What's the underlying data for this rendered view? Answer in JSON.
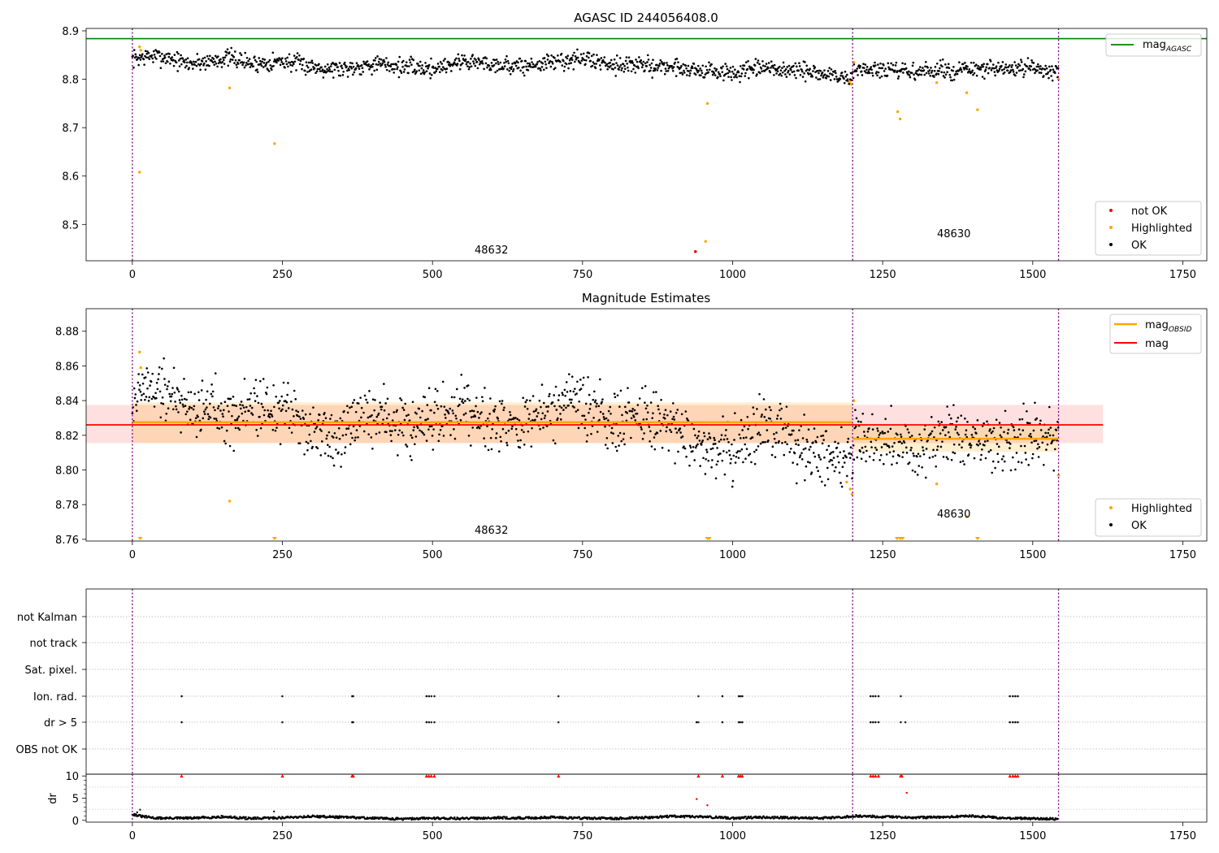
{
  "chart_data": [
    {
      "type": "scatter",
      "title": "AGASC ID 244056408.0",
      "xlabel": "",
      "ylabel": "",
      "xlim": [
        -77,
        1790
      ],
      "ylim": [
        8.425,
        8.905
      ],
      "xticks": [
        0,
        250,
        500,
        750,
        1000,
        1250,
        1500,
        1750
      ],
      "xtick_labels": [
        "0",
        "250",
        "500",
        "750",
        "1000",
        "1250",
        "1500",
        "1750"
      ],
      "yticks": [
        8.5,
        8.6,
        8.7,
        8.8,
        8.9
      ],
      "ytick_labels": [
        "8.5",
        "8.6",
        "8.7",
        "8.8",
        "8.9"
      ],
      "grid": false,
      "obsid_boundaries": [
        0,
        1200,
        1543
      ],
      "obsid_labels": [
        {
          "text": "48632",
          "x": 600,
          "y": 8.445
        },
        {
          "text": "48630",
          "x": 1370,
          "y": 8.477
        }
      ],
      "mag_agasc": 8.884,
      "legend_upper": {
        "position": "upper right",
        "entries": [
          {
            "label": "mag",
            "subscript": "AGASC",
            "color": "#008000"
          }
        ]
      },
      "legend_lower": {
        "position": "lower right",
        "entries": [
          {
            "label": "not OK",
            "color": "#ff0000"
          },
          {
            "label": "Highlighted",
            "color": "#ffa500"
          },
          {
            "label": "OK",
            "color": "#000000"
          }
        ]
      },
      "ok_trend": [
        [
          0,
          8.842
        ],
        [
          30,
          8.848
        ],
        [
          60,
          8.845
        ],
        [
          90,
          8.832
        ],
        [
          130,
          8.838
        ],
        [
          160,
          8.845
        ],
        [
          200,
          8.832
        ],
        [
          250,
          8.838
        ],
        [
          300,
          8.826
        ],
        [
          350,
          8.822
        ],
        [
          400,
          8.832
        ],
        [
          450,
          8.826
        ],
        [
          500,
          8.822
        ],
        [
          550,
          8.838
        ],
        [
          600,
          8.832
        ],
        [
          650,
          8.826
        ],
        [
          700,
          8.836
        ],
        [
          750,
          8.842
        ],
        [
          800,
          8.832
        ],
        [
          850,
          8.828
        ],
        [
          900,
          8.826
        ],
        [
          950,
          8.818
        ],
        [
          1000,
          8.812
        ],
        [
          1050,
          8.822
        ],
        [
          1100,
          8.818
        ],
        [
          1150,
          8.812
        ],
        [
          1199,
          8.8
        ],
        [
          1203,
          8.822
        ],
        [
          1250,
          8.818
        ],
        [
          1300,
          8.815
        ],
        [
          1350,
          8.818
        ],
        [
          1400,
          8.82
        ],
        [
          1450,
          8.82
        ],
        [
          1500,
          8.822
        ],
        [
          1543,
          8.818
        ]
      ],
      "ok_range": [
        0,
        1543
      ],
      "ok_spread": 0.009,
      "highlighted": [
        [
          12,
          8.867
        ],
        [
          14,
          8.86
        ],
        [
          12,
          8.608
        ],
        [
          162,
          8.782
        ],
        [
          237,
          8.667
        ],
        [
          955,
          8.465
        ],
        [
          958,
          8.75
        ],
        [
          1195,
          8.795
        ],
        [
          1198,
          8.79
        ],
        [
          1202,
          8.835
        ],
        [
          1275,
          8.733
        ],
        [
          1279,
          8.718
        ],
        [
          1340,
          8.793
        ],
        [
          1390,
          8.772
        ],
        [
          1408,
          8.737
        ],
        [
          1543,
          8.8
        ]
      ],
      "not_ok": [
        [
          938,
          8.444
        ]
      ]
    },
    {
      "type": "scatter",
      "title": "Magnitude Estimates",
      "xlabel": "",
      "ylabel": "",
      "xlim": [
        -77,
        1790
      ],
      "ylim": [
        8.759,
        8.893
      ],
      "xticks": [
        0,
        250,
        500,
        750,
        1000,
        1250,
        1500,
        1750
      ],
      "xtick_labels": [
        "0",
        "250",
        "500",
        "750",
        "1000",
        "1250",
        "1500",
        "1750"
      ],
      "yticks": [
        8.76,
        8.78,
        8.8,
        8.82,
        8.84,
        8.86,
        8.88
      ],
      "ytick_labels": [
        "8.76",
        "8.78",
        "8.80",
        "8.82",
        "8.84",
        "8.86",
        "8.88"
      ],
      "grid": false,
      "obsid_boundaries": [
        0,
        1200,
        1543
      ],
      "obsid_labels": [
        {
          "text": "48632",
          "x": 600,
          "y": 8.763
        },
        {
          "text": "48630",
          "x": 1370,
          "y": 8.774
        }
      ],
      "mag": {
        "value": 8.826,
        "low": 8.8155,
        "high": 8.8375,
        "x_range": [
          -77,
          1617
        ]
      },
      "mag_obsid": [
        {
          "x_range": [
            0,
            1200
          ],
          "value": 8.8275,
          "low": 8.8155,
          "high": 8.839
        },
        {
          "x_range": [
            1200,
            1543
          ],
          "value": 8.818,
          "low": 8.8105,
          "high": 8.8255
        }
      ],
      "legend_upper": {
        "position": "upper right",
        "entries": [
          {
            "label": "mag",
            "subscript": "OBSID",
            "color": "#ffa500"
          },
          {
            "label": "mag",
            "subscript": "",
            "color": "#ff0000"
          }
        ]
      },
      "legend_lower": {
        "position": "lower right",
        "entries": [
          {
            "label": "Highlighted",
            "color": "#ffa500"
          },
          {
            "label": "OK",
            "color": "#000000"
          }
        ]
      },
      "ok_trend": [
        [
          0,
          8.84
        ],
        [
          20,
          8.848
        ],
        [
          50,
          8.846
        ],
        [
          80,
          8.84
        ],
        [
          110,
          8.834
        ],
        [
          140,
          8.838
        ],
        [
          170,
          8.83
        ],
        [
          200,
          8.838
        ],
        [
          250,
          8.834
        ],
        [
          300,
          8.824
        ],
        [
          340,
          8.816
        ],
        [
          380,
          8.828
        ],
        [
          420,
          8.832
        ],
        [
          460,
          8.822
        ],
        [
          500,
          8.826
        ],
        [
          550,
          8.838
        ],
        [
          600,
          8.83
        ],
        [
          650,
          8.826
        ],
        [
          700,
          8.834
        ],
        [
          750,
          8.838
        ],
        [
          800,
          8.826
        ],
        [
          850,
          8.83
        ],
        [
          900,
          8.826
        ],
        [
          950,
          8.814
        ],
        [
          1000,
          8.812
        ],
        [
          1050,
          8.824
        ],
        [
          1100,
          8.818
        ],
        [
          1150,
          8.81
        ],
        [
          1199,
          8.806
        ],
        [
          1203,
          8.822
        ],
        [
          1250,
          8.818
        ],
        [
          1300,
          8.812
        ],
        [
          1350,
          8.82
        ],
        [
          1400,
          8.816
        ],
        [
          1450,
          8.818
        ],
        [
          1500,
          8.82
        ],
        [
          1543,
          8.818
        ]
      ],
      "ok_range": [
        0,
        1543
      ],
      "ok_spread": 0.0085,
      "highlighted": [
        [
          12,
          8.868
        ],
        [
          14,
          8.859
        ],
        [
          162,
          8.782
        ],
        [
          1190,
          8.793
        ],
        [
          1196,
          8.789
        ],
        [
          1199,
          8.786
        ],
        [
          1202,
          8.84
        ],
        [
          1340,
          8.792
        ],
        [
          1390,
          8.773
        ],
        [
          1543,
          8.797
        ]
      ],
      "offscale_below": [
        13,
        237,
        958,
        961,
        1274,
        1279,
        1283,
        1408
      ]
    },
    {
      "type": "scatter",
      "title": "",
      "xlabel": "",
      "ylabel": "",
      "xlim": [
        -77,
        1790
      ],
      "xticks": [
        0,
        250,
        500,
        750,
        1000,
        1250,
        1500,
        1750
      ],
      "xtick_labels": [
        "0",
        "250",
        "500",
        "750",
        "1000",
        "1250",
        "1500",
        "1750"
      ],
      "categories": [
        "not Kalman",
        "not track",
        "Sat. pixel.",
        "Ion. rad.",
        "dr > 5",
        "OBS not OK"
      ],
      "grid": "horizontal dotted",
      "obsid_boundaries": [
        0,
        1200,
        1543
      ],
      "flag_points": {
        "Ion. rad.": [
          82,
          250,
          366,
          368,
          490,
          494,
          498,
          503,
          710,
          943,
          983,
          1010,
          1013,
          1016,
          1230,
          1234,
          1238,
          1243,
          1280,
          1462,
          1467,
          1471,
          1475
        ],
        "dr > 5": [
          82,
          250,
          366,
          368,
          490,
          494,
          498,
          503,
          710,
          940,
          943,
          983,
          1010,
          1013,
          1016,
          1230,
          1234,
          1238,
          1243,
          1280,
          1288,
          1462,
          1467,
          1471,
          1475
        ]
      }
    },
    {
      "type": "scatter",
      "title": "",
      "xlabel": "",
      "ylabel": "dr",
      "xlim": [
        -77,
        1790
      ],
      "ylim": [
        -0.4,
        10.4
      ],
      "xticks": [
        0,
        250,
        500,
        750,
        1000,
        1250,
        1500,
        1750
      ],
      "xtick_labels": [
        "0",
        "250",
        "500",
        "750",
        "1000",
        "1250",
        "1500",
        "1750"
      ],
      "yticks": [
        0,
        5,
        10
      ],
      "ytick_labels": [
        "0",
        "5",
        "10"
      ],
      "grid": false,
      "obsid_boundaries": [
        0,
        1200,
        1543
      ],
      "dr_baseline": [
        [
          0,
          1.4
        ],
        [
          15,
          0.9
        ],
        [
          40,
          0.5
        ],
        [
          100,
          0.5
        ],
        [
          150,
          0.8
        ],
        [
          200,
          0.4
        ],
        [
          250,
          0.6
        ],
        [
          300,
          0.9
        ],
        [
          350,
          0.7
        ],
        [
          400,
          0.5
        ],
        [
          450,
          0.3
        ],
        [
          500,
          0.5
        ],
        [
          550,
          0.4
        ],
        [
          600,
          0.6
        ],
        [
          650,
          0.5
        ],
        [
          700,
          0.7
        ],
        [
          750,
          0.5
        ],
        [
          800,
          0.4
        ],
        [
          850,
          0.6
        ],
        [
          900,
          0.9
        ],
        [
          950,
          0.8
        ],
        [
          1000,
          0.5
        ],
        [
          1050,
          0.7
        ],
        [
          1100,
          0.6
        ],
        [
          1150,
          0.5
        ],
        [
          1199,
          0.9
        ],
        [
          1203,
          1.0
        ],
        [
          1250,
          0.8
        ],
        [
          1300,
          0.6
        ],
        [
          1350,
          0.7
        ],
        [
          1400,
          1.0
        ],
        [
          1450,
          0.5
        ],
        [
          1500,
          0.4
        ],
        [
          1543,
          0.3
        ]
      ],
      "dr_extra": [
        [
          8,
          1.8
        ],
        [
          13,
          2.4
        ],
        [
          236,
          2.0
        ]
      ],
      "dr_high": [
        [
          940,
          4.8
        ],
        [
          958,
          3.4
        ],
        [
          1290,
          6.2
        ]
      ],
      "dr_capped": [
        82,
        250,
        366,
        368,
        490,
        494,
        498,
        503,
        710,
        943,
        983,
        1010,
        1013,
        1016,
        1230,
        1234,
        1238,
        1243,
        1280,
        1282,
        1462,
        1467,
        1471,
        1475
      ]
    }
  ]
}
